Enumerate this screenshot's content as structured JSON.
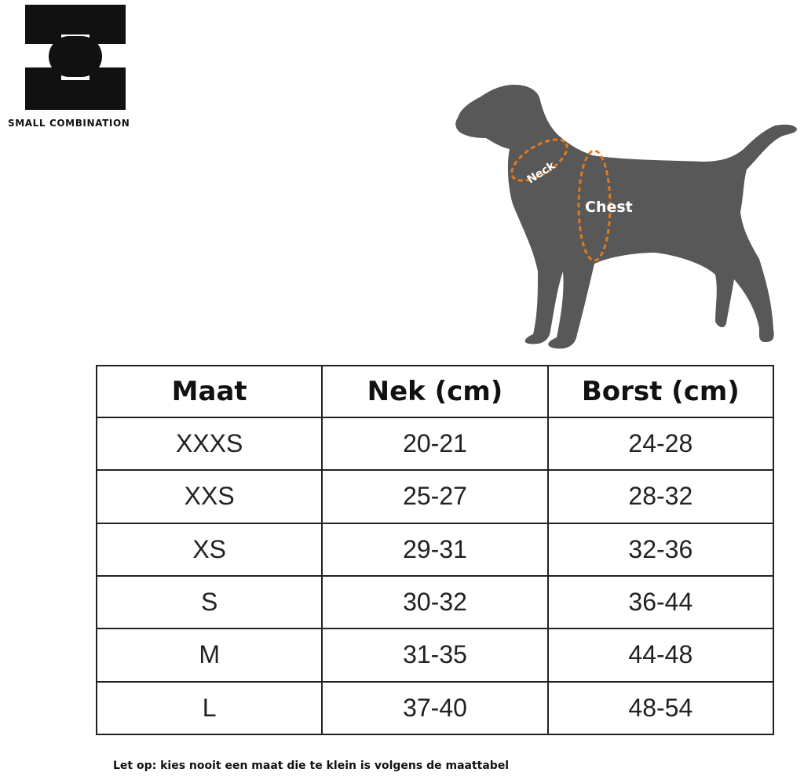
{
  "brand": {
    "logo_text": "SMALL COMBINATION"
  },
  "figure": {
    "neck_label": "Neck",
    "chest_label": "Chest",
    "accent_color": "#e07a1f",
    "dog_color": "#585858"
  },
  "table": {
    "headers": [
      "Maat",
      "Nek (cm)",
      "Borst (cm)"
    ],
    "rows": [
      [
        "XXXS",
        "20-21",
        "24-28"
      ],
      [
        "XXS",
        "25-27",
        "28-32"
      ],
      [
        "XS",
        "29-31",
        "32-36"
      ],
      [
        "S",
        "30-32",
        "36-44"
      ],
      [
        "M",
        "31-35",
        "44-48"
      ],
      [
        "L",
        "37-40",
        "48-54"
      ]
    ]
  },
  "note": "Let op: kies nooit een maat die te klein is volgens de maattabel"
}
